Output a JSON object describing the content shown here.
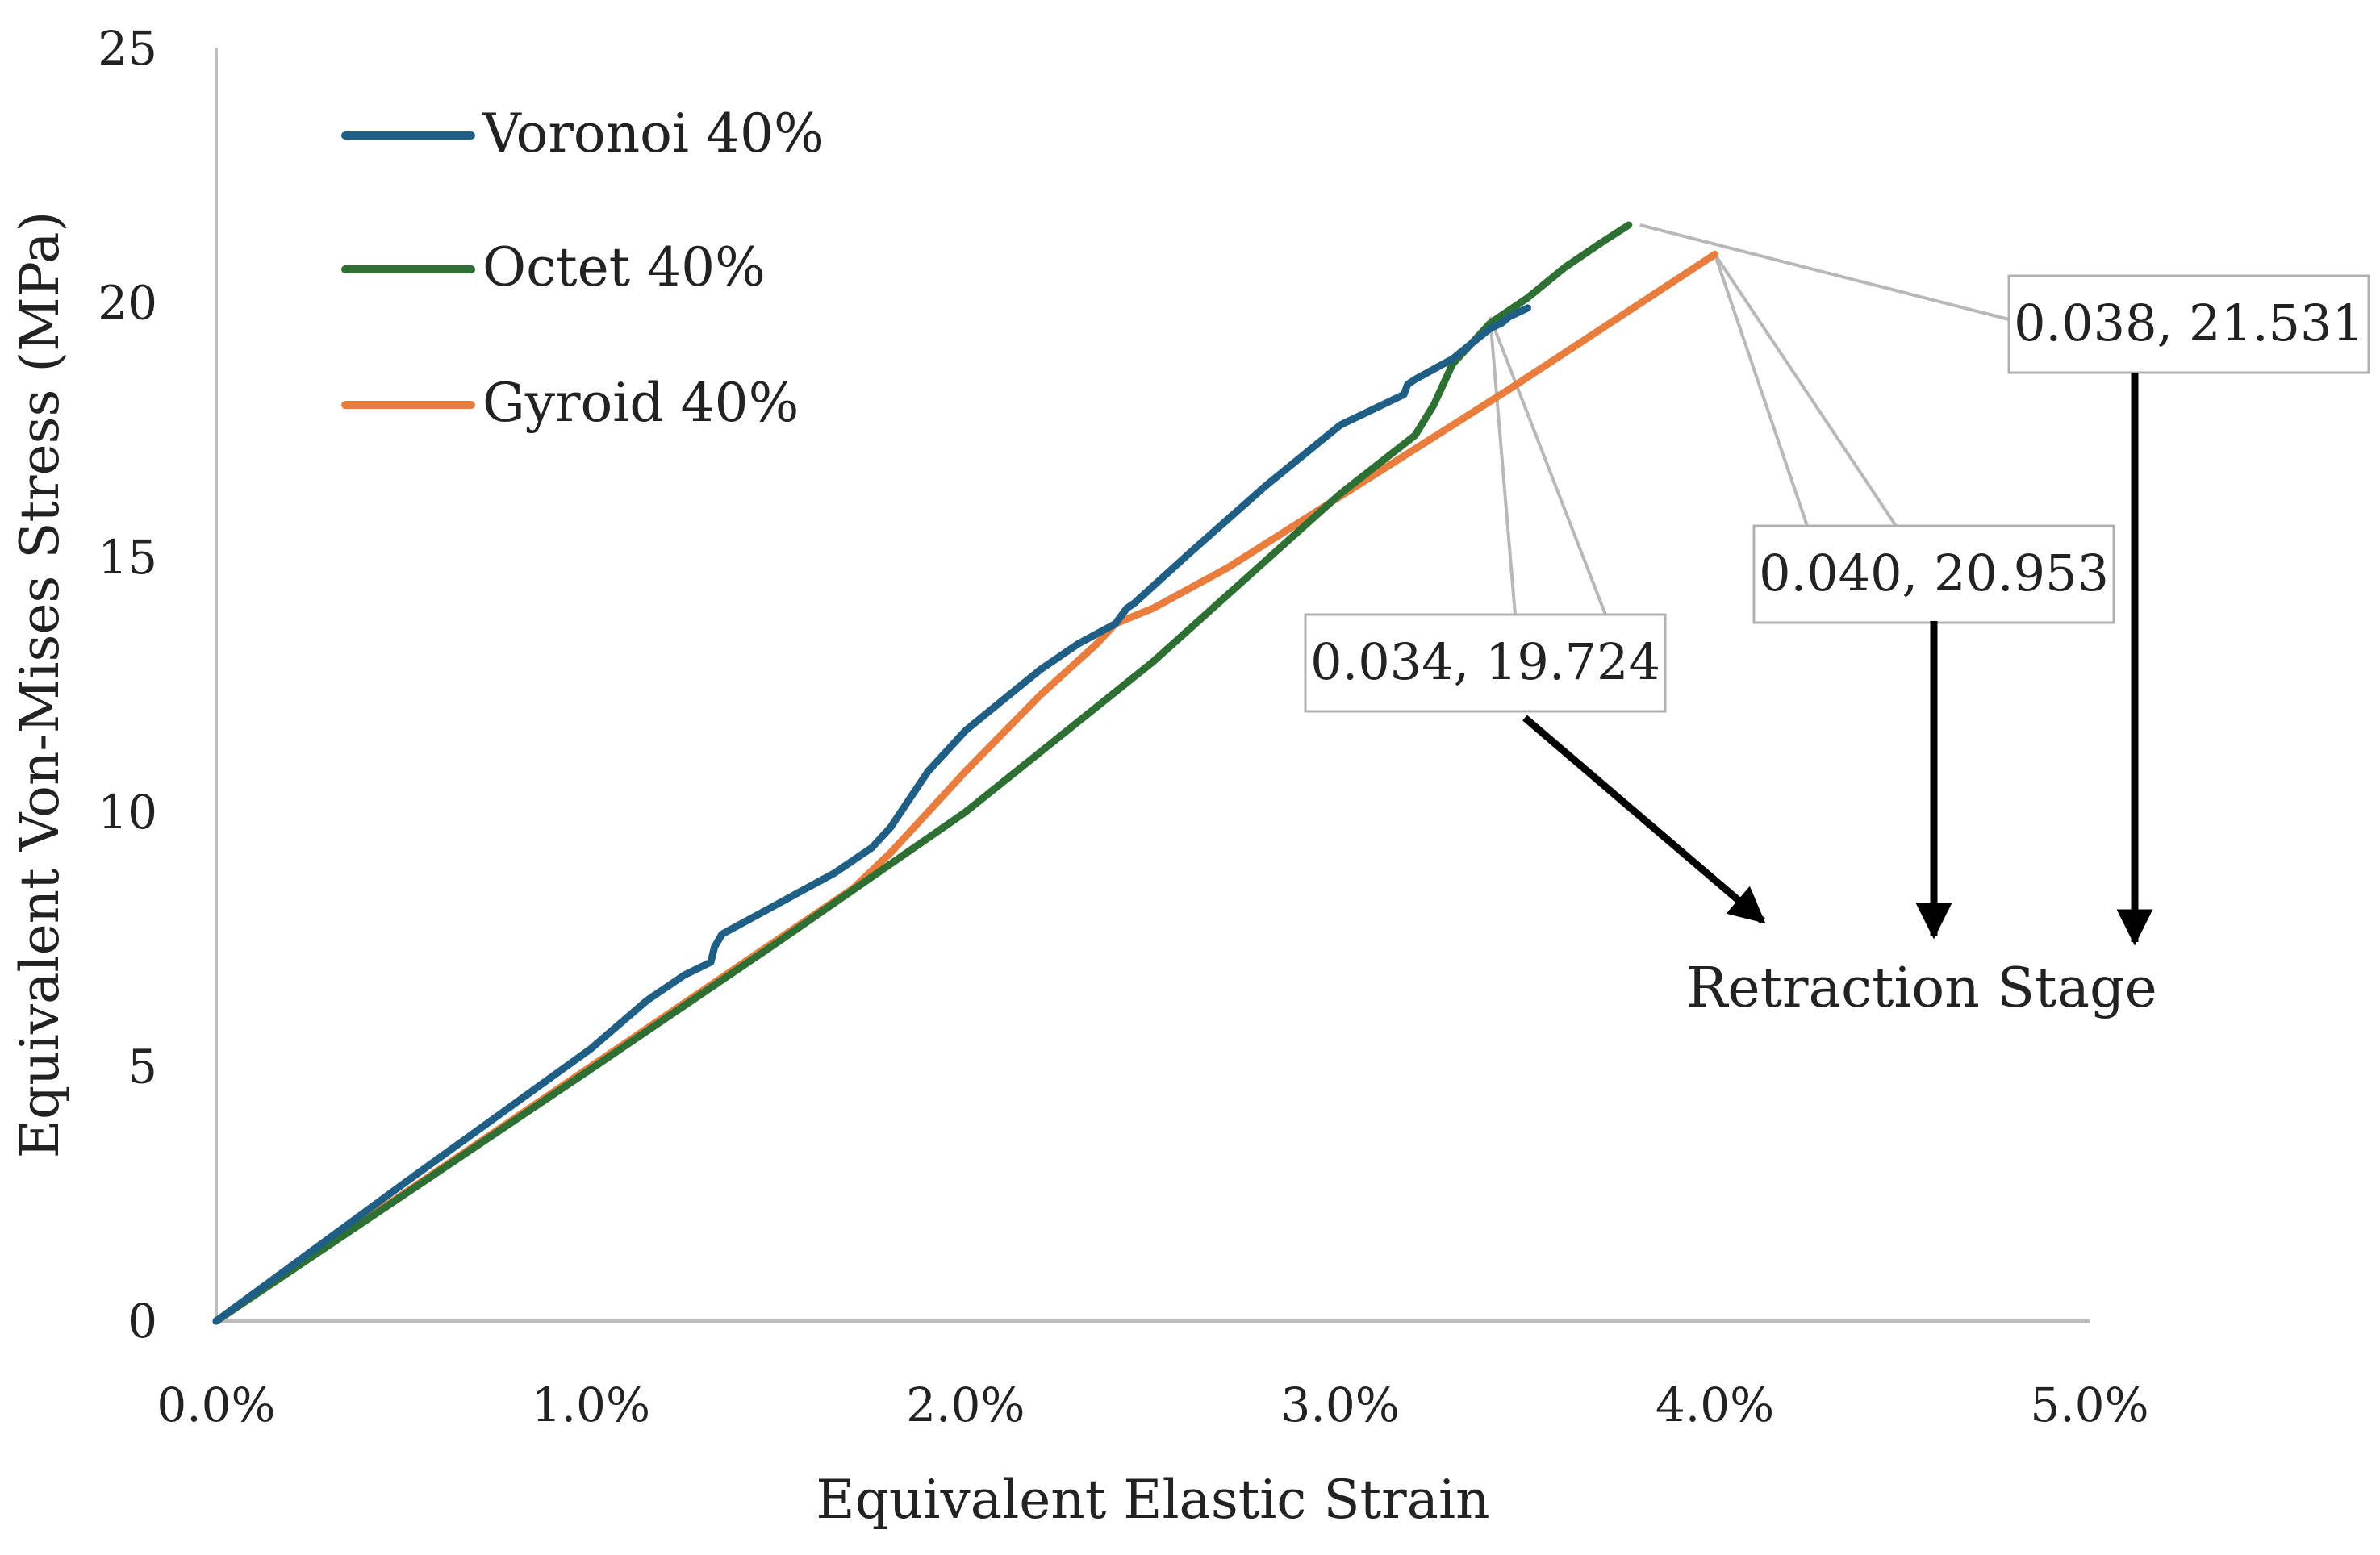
{
  "chart_data": {
    "type": "line",
    "title": "",
    "xlabel": "Equivalent Elastic Strain",
    "ylabel": "Equivalent Von-Mises Stress (MPa)",
    "xlim": [
      0,
      0.05
    ],
    "ylim": [
      0,
      25
    ],
    "grid": false,
    "legend_position": "top-left",
    "x_ticks": [
      0,
      0.01,
      0.02,
      0.03,
      0.04,
      0.05
    ],
    "x_tick_labels": [
      "0.0%",
      "1.0%",
      "2.0%",
      "3.0%",
      "4.0%",
      "5.0%"
    ],
    "y_ticks": [
      0,
      5,
      10,
      15,
      20,
      25
    ],
    "y_tick_labels": [
      "0",
      "5",
      "10",
      "15",
      "20",
      "25"
    ],
    "series": [
      {
        "name": "Voronoi 40%",
        "color": "#1f5f85",
        "x": [
          0,
          0.005,
          0.01,
          0.0115,
          0.0125,
          0.0132,
          0.0133,
          0.0135,
          0.015,
          0.0165,
          0.0175,
          0.018,
          0.019,
          0.02,
          0.021,
          0.022,
          0.023,
          0.024,
          0.0243,
          0.0245,
          0.026,
          0.028,
          0.03,
          0.0317,
          0.0318,
          0.032,
          0.033,
          0.0335,
          0.034,
          0.0343,
          0.0345,
          0.035
        ],
        "y": [
          0,
          2.7,
          5.35,
          6.3,
          6.8,
          7.05,
          7.35,
          7.6,
          8.2,
          8.8,
          9.3,
          9.7,
          10.8,
          11.6,
          12.2,
          12.8,
          13.3,
          13.7,
          14.0,
          14.1,
          15.1,
          16.4,
          17.6,
          18.2,
          18.4,
          18.5,
          18.9,
          19.2,
          19.5,
          19.6,
          19.724,
          19.9
        ]
      },
      {
        "name": "Octet 40%",
        "color": "#2e7033",
        "x": [
          0,
          0.01,
          0.015,
          0.02,
          0.025,
          0.03,
          0.032,
          0.0325,
          0.033,
          0.034,
          0.035,
          0.036,
          0.037,
          0.0377
        ],
        "y": [
          0,
          4.95,
          7.45,
          10.0,
          12.95,
          16.25,
          17.4,
          18.0,
          18.8,
          19.6,
          20.1,
          20.7,
          21.2,
          21.531
        ]
      },
      {
        "name": "Gyroid 40%",
        "color": "#e87d3e",
        "x": [
          0,
          0.005,
          0.01,
          0.015,
          0.017,
          0.018,
          0.019,
          0.02,
          0.022,
          0.0235,
          0.024,
          0.025,
          0.027,
          0.03,
          0.0345,
          0.04
        ],
        "y": [
          0,
          2.5,
          5.0,
          7.5,
          8.5,
          9.2,
          10.0,
          10.8,
          12.3,
          13.3,
          13.7,
          14.0,
          14.8,
          16.2,
          18.3,
          20.953
        ]
      }
    ],
    "callouts": [
      {
        "label": "0.034, 19.724",
        "x": 0.034,
        "y": 19.724
      },
      {
        "label": "0.040, 20.953",
        "x": 0.04,
        "y": 20.953
      },
      {
        "label": "0.038, 21.531",
        "x": 0.038,
        "y": 21.531
      }
    ],
    "annotation": "Retraction Stage"
  }
}
